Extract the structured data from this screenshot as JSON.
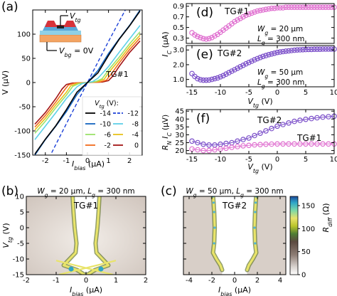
{
  "chart_data": [
    {
      "panel": "(a)",
      "type": "line",
      "ylabel": "V (μV)",
      "xlabel": "I_bias (μA)",
      "xlim": [
        -2.6,
        2.6
      ],
      "ylim": [
        -150,
        150
      ],
      "xticks": [
        "-2",
        "-1",
        "0",
        "1",
        "2"
      ],
      "yticks": [
        "-150",
        "-100",
        "-50",
        "0",
        "50",
        "100"
      ],
      "annotation": "TG#1",
      "inset": {
        "top": "V_tg",
        "bottom": "V_bg = 0V"
      },
      "legend": {
        "title": "V_tg (V):",
        "placement": "bottom-right"
      },
      "series": [
        {
          "name": "-14",
          "color": "#000000",
          "dash": false,
          "x": [
            -2.5,
            -2.0,
            -1.5,
            -1.0,
            -0.5,
            0.0,
            0.5,
            1.0,
            1.5,
            2.0,
            2.5
          ],
          "y": [
            -148,
            -117,
            -89,
            -56,
            -20,
            0,
            20,
            56,
            89,
            117,
            148
          ]
        },
        {
          "name": "-12",
          "color": "#1a3fd8",
          "dash": true,
          "x": [
            -1.7,
            -1.0,
            0.0,
            1.0,
            1.8
          ],
          "y": [
            -145,
            -85,
            0,
            85,
            150
          ]
        },
        {
          "name": "-10",
          "color": "#1565c0",
          "dash": false,
          "x": [
            -2.5,
            -2.0,
            -1.5,
            -1.0,
            -0.5,
            0.0,
            0.5,
            1.0,
            1.5,
            2.0,
            2.5
          ],
          "y": [
            -150,
            -118,
            -90,
            -60,
            -25,
            0,
            25,
            60,
            90,
            118,
            150
          ]
        },
        {
          "name": "-8",
          "color": "#5dd0e8",
          "dash": false,
          "x": [
            -2.5,
            -2.0,
            -1.5,
            -1.0,
            -0.5,
            -0.25,
            0.0,
            0.25,
            0.5,
            1.0,
            1.5,
            2.0,
            2.5
          ],
          "y": [
            -118,
            -90,
            -62,
            -33,
            -9,
            -2,
            0,
            2,
            9,
            33,
            62,
            90,
            118
          ]
        },
        {
          "name": "-6",
          "color": "#9be26a",
          "dash": false,
          "x": [
            -2.5,
            -2.0,
            -1.5,
            -1.0,
            -0.7,
            -0.4,
            0.0,
            0.4,
            0.7,
            1.0,
            1.5,
            2.0,
            2.5
          ],
          "y": [
            -105,
            -80,
            -52,
            -26,
            -8,
            -2,
            0,
            2,
            8,
            26,
            52,
            80,
            105
          ]
        },
        {
          "name": "-4",
          "color": "#e8c21a",
          "dash": false,
          "x": [
            -2.5,
            -2.0,
            -1.5,
            -1.0,
            -0.8,
            -0.5,
            0.0,
            0.5,
            0.8,
            1.0,
            1.5,
            2.0,
            2.5
          ],
          "y": [
            -98,
            -74,
            -46,
            -20,
            -7,
            -2,
            0,
            2,
            7,
            20,
            46,
            74,
            98
          ]
        },
        {
          "name": "-2",
          "color": "#f26a1b",
          "dash": false,
          "x": [
            -2.5,
            -2.0,
            -1.5,
            -1.1,
            -0.9,
            -0.6,
            0.0,
            0.6,
            0.9,
            1.1,
            1.5,
            2.0,
            2.5
          ],
          "y": [
            -92,
            -68,
            -40,
            -16,
            -5,
            -1,
            0,
            1,
            5,
            16,
            40,
            68,
            92
          ]
        },
        {
          "name": "0",
          "color": "#a31515",
          "dash": false,
          "x": [
            -2.5,
            -2.0,
            -1.5,
            -1.2,
            -1.0,
            -0.7,
            0.0,
            0.7,
            1.0,
            1.2,
            1.5,
            2.0,
            2.5
          ],
          "y": [
            -86,
            -62,
            -33,
            -13,
            -4,
            -1,
            0,
            1,
            4,
            13,
            33,
            62,
            86
          ]
        }
      ]
    },
    {
      "panel": "(d)",
      "type": "scatter",
      "annotation": "TG#1",
      "ylabel": "I_C (μA)",
      "xlim": [
        -16,
        10
      ],
      "ylim": [
        0.2,
        0.95
      ],
      "yticks": [
        "0.3",
        "0.5",
        "0.7",
        "0.9"
      ],
      "params": [
        "W_g = 20 μm",
        "L_g = 300 nm"
      ],
      "series": [
        {
          "name": "TG#1",
          "color": "#e070d0",
          "x": [
            -15,
            -14.5,
            -14,
            -13.5,
            -13,
            -12.5,
            -12,
            -11.5,
            -11,
            -10.5,
            -10,
            -9.5,
            -9,
            -8.5,
            -8,
            -7.5,
            -7,
            -6.5,
            -6,
            -5.5,
            -5,
            -4.5,
            -4,
            -3.5,
            -3,
            -2.5,
            -2,
            -1.5,
            -1,
            -0.5,
            0,
            0.5,
            1,
            1.5,
            2,
            2.5,
            3,
            3.5,
            4,
            4.5,
            5,
            5.5,
            6,
            6.5,
            7,
            7.5,
            8,
            8.5,
            9,
            9.5,
            10
          ],
          "y": [
            0.4,
            0.36,
            0.33,
            0.31,
            0.29,
            0.28,
            0.29,
            0.31,
            0.34,
            0.37,
            0.41,
            0.45,
            0.49,
            0.53,
            0.57,
            0.61,
            0.64,
            0.67,
            0.7,
            0.73,
            0.75,
            0.77,
            0.79,
            0.81,
            0.82,
            0.83,
            0.84,
            0.85,
            0.86,
            0.86,
            0.87,
            0.87,
            0.87,
            0.88,
            0.88,
            0.88,
            0.88,
            0.88,
            0.88,
            0.88,
            0.88,
            0.88,
            0.88,
            0.88,
            0.88,
            0.88,
            0.88,
            0.88,
            0.88,
            0.88,
            0.88
          ]
        }
      ]
    },
    {
      "panel": "(e)",
      "type": "scatter",
      "annotation": "TG#2",
      "xlabel": "V_tg (V)",
      "xlim": [
        -16,
        10
      ],
      "ylim": [
        0.5,
        3.3
      ],
      "xticks": [
        "-15",
        "-10",
        "-5",
        "0",
        "5",
        "10"
      ],
      "yticks": [
        "1.0",
        "2.0",
        "3.0"
      ],
      "params": [
        "W_g = 50 μm",
        "L_g = 300 nm"
      ],
      "series": [
        {
          "name": "TG#2",
          "color": "#7b4fc9",
          "x": [
            -15,
            -14.5,
            -14,
            -13.5,
            -13,
            -12.5,
            -12,
            -11.5,
            -11,
            -10.5,
            -10,
            -9.5,
            -9,
            -8.5,
            -8,
            -7.5,
            -7,
            -6.5,
            -6,
            -5.5,
            -5,
            -4.5,
            -4,
            -3.5,
            -3,
            -2.5,
            -2,
            -1.5,
            -1,
            -0.5,
            0,
            0.5,
            1,
            1.5,
            2,
            2.5,
            3,
            3.5,
            4,
            4.5,
            5,
            5.5,
            6,
            6.5,
            7,
            7.5,
            8,
            8.5,
            9,
            9.5,
            10
          ],
          "y": [
            1.4,
            1.2,
            1.05,
            0.98,
            0.95,
            0.95,
            0.96,
            1.0,
            1.05,
            1.1,
            1.18,
            1.26,
            1.36,
            1.46,
            1.56,
            1.66,
            1.76,
            1.86,
            1.96,
            2.06,
            2.15,
            2.24,
            2.33,
            2.41,
            2.49,
            2.56,
            2.62,
            2.68,
            2.73,
            2.78,
            2.83,
            2.86,
            2.89,
            2.92,
            2.94,
            2.96,
            2.98,
            3.0,
            3.01,
            3.02,
            3.03,
            3.04,
            3.04,
            3.05,
            3.05,
            3.05,
            3.06,
            3.06,
            3.06,
            3.06,
            3.06
          ]
        }
      ]
    },
    {
      "panel": "(f)",
      "type": "scatter",
      "ylabel": "R_N I_C (μV)",
      "xlabel": "V_tg (V)",
      "xlim": [
        -16,
        10
      ],
      "ylim": [
        18,
        46
      ],
      "xticks": [
        "-15",
        "-10",
        "-5",
        "0",
        "5",
        "10"
      ],
      "yticks": [
        "20",
        "25",
        "30",
        "35",
        "40",
        "45"
      ],
      "series": [
        {
          "name": "TG#2",
          "color": "#7b4fc9",
          "x": [
            -15,
            -14,
            -13,
            -12,
            -11,
            -10,
            -9,
            -8,
            -7,
            -6,
            -5,
            -4,
            -3,
            -2,
            -1,
            0,
            1,
            2,
            3,
            4,
            5,
            6,
            7,
            8,
            9,
            10
          ],
          "y": [
            26,
            25,
            24,
            23.5,
            23.5,
            24,
            24.5,
            25,
            26,
            27,
            28,
            29.5,
            31,
            32.5,
            34,
            35.5,
            36.5,
            37.5,
            38.5,
            39.2,
            39.8,
            40.3,
            40.8,
            41.2,
            41.5,
            41.8
          ]
        },
        {
          "name": "TG#1",
          "color": "#e070d0",
          "x": [
            -15,
            -14,
            -13,
            -12,
            -11,
            -10,
            -9,
            -8,
            -7,
            -6,
            -5,
            -4,
            -3,
            -2,
            -1,
            0,
            1,
            2,
            3,
            4,
            5,
            6,
            7,
            8,
            9,
            10
          ],
          "y": [
            21,
            20.5,
            20,
            20,
            20.5,
            21,
            21.5,
            22,
            22.5,
            23,
            23.3,
            23.6,
            23.8,
            24,
            24.1,
            24.2,
            24.2,
            24.2,
            24.2,
            24.2,
            24.2,
            24.2,
            24.2,
            24.2,
            24.2,
            24.2
          ]
        }
      ]
    },
    {
      "panel": "(b)",
      "type": "heatmap",
      "title": "W_g = 20 μm, L_g = 300 nm",
      "annotation": "TG#1",
      "xlabel": "I_bias (μA)",
      "ylabel": "V_tg (V)",
      "xlim": [
        -2,
        2
      ],
      "ylim": [
        -15,
        10
      ],
      "xticks": [
        "-2",
        "-1",
        "0",
        "1",
        "2"
      ],
      "yticks": [
        "-15",
        "-10",
        "-5",
        "0",
        "5",
        "10"
      ],
      "ridge": {
        "v_tg": [
          10,
          5,
          0,
          -5,
          -8,
          -10,
          -12,
          -13.5,
          -15
        ],
        "i_bias": [
          0.45,
          0.42,
          0.38,
          0.32,
          0.35,
          0.55,
          0.75,
          0.3,
          0.05
        ]
      }
    },
    {
      "panel": "(c)",
      "type": "heatmap",
      "title": "W_g = 50 μm, L_g = 300 nm",
      "annotation": "TG#2",
      "xlabel": "I_bias (μA)",
      "xlim": [
        -4.5,
        4.5
      ],
      "ylim": [
        -15,
        10
      ],
      "xticks": [
        "-4",
        "-2",
        "0",
        "2",
        "4"
      ],
      "yticks": [
        "-15",
        "-10",
        "-5",
        "0",
        "5",
        "10"
      ],
      "colorbar": {
        "label": "R_diff (Ω)",
        "ticks": [
          "0",
          "50",
          "100",
          "150"
        ],
        "range": [
          0,
          170
        ]
      },
      "ridge": {
        "v_tg": [
          10,
          8,
          5,
          0,
          -5,
          -8,
          -10,
          -12,
          -13.5
        ],
        "i_bias": [
          1.9,
          1.85,
          1.8,
          1.75,
          1.8,
          1.9,
          1.6,
          1.25,
          1.1
        ]
      }
    }
  ]
}
